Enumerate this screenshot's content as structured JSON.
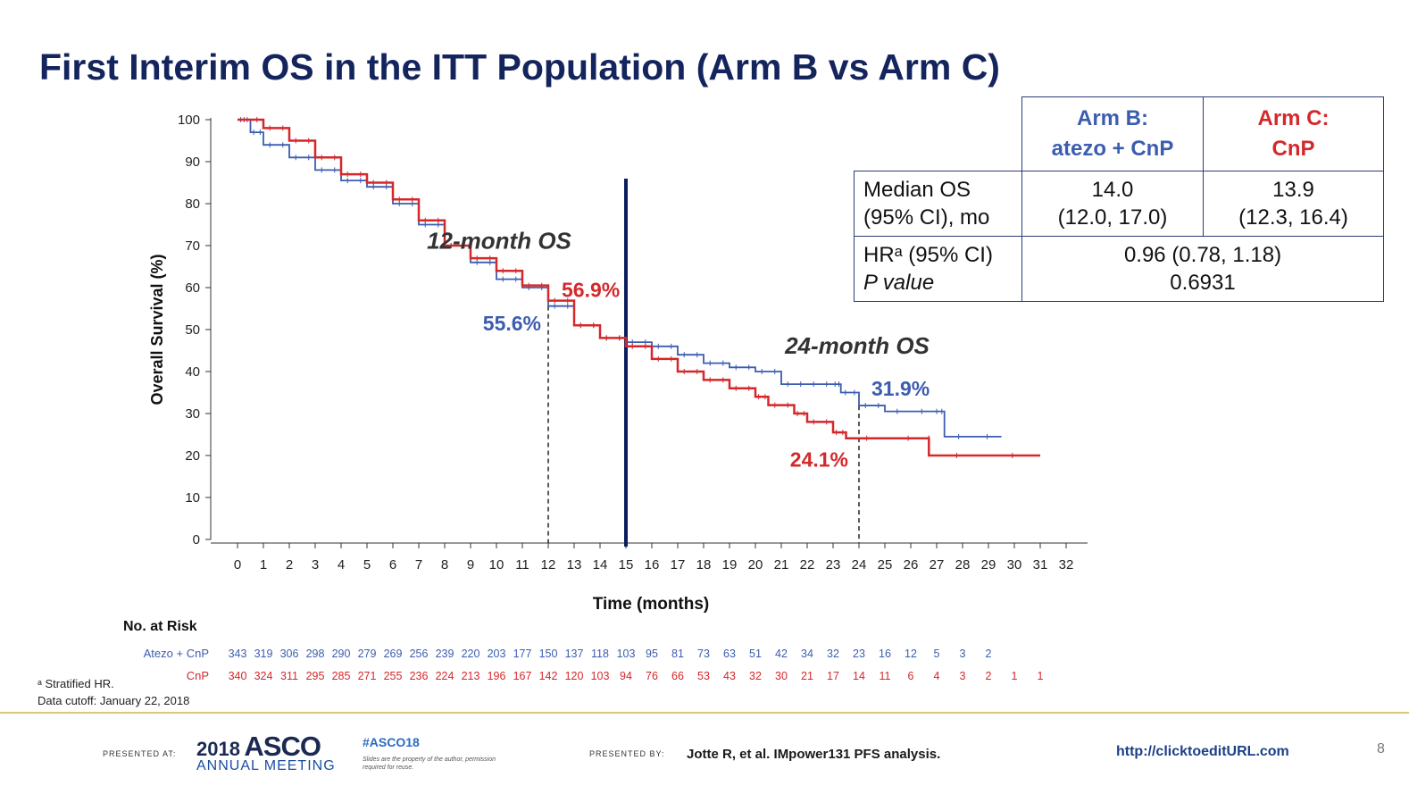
{
  "title": "First Interim OS in the ITT Population (Arm B vs Arm C)",
  "colors": {
    "title": "#14245c",
    "arm_b": "#3b5db0",
    "arm_c": "#d4282b",
    "landmark_line": "#0c1d5e",
    "footer_rule": "#d9c77a"
  },
  "chart_data": {
    "type": "line",
    "subtype": "kaplan-meier",
    "xlabel": "Time (months)",
    "ylabel": "Overall Survival (%)",
    "xlim": [
      0,
      32
    ],
    "ylim": [
      0,
      100
    ],
    "x_ticks": [
      0,
      1,
      2,
      3,
      4,
      5,
      6,
      7,
      8,
      9,
      10,
      11,
      12,
      13,
      14,
      15,
      16,
      17,
      18,
      19,
      20,
      21,
      22,
      23,
      24,
      25,
      26,
      27,
      28,
      29,
      30,
      31,
      32
    ],
    "y_ticks": [
      0,
      10,
      20,
      30,
      40,
      50,
      60,
      70,
      80,
      90,
      100
    ],
    "landmark_lines": [
      12,
      24
    ],
    "highlight_line": 15,
    "series": [
      {
        "name": "Arm B: atezo + CnP",
        "color": "#3b5db0",
        "points": [
          [
            0,
            100
          ],
          [
            0.5,
            97
          ],
          [
            1,
            94
          ],
          [
            2,
            91
          ],
          [
            3,
            88
          ],
          [
            4,
            85.5
          ],
          [
            5,
            84
          ],
          [
            6,
            80
          ],
          [
            7,
            75
          ],
          [
            8,
            70
          ],
          [
            9,
            66
          ],
          [
            10,
            62
          ],
          [
            11,
            60
          ],
          [
            12,
            55.6
          ],
          [
            13,
            51
          ],
          [
            14,
            48
          ],
          [
            15,
            47
          ],
          [
            16,
            46
          ],
          [
            17,
            44
          ],
          [
            18,
            42
          ],
          [
            19,
            41
          ],
          [
            20,
            40
          ],
          [
            21,
            37
          ],
          [
            22,
            37
          ],
          [
            23,
            37
          ],
          [
            23.3,
            35
          ],
          [
            24,
            31.9
          ],
          [
            25,
            30.5
          ],
          [
            26.9,
            30.5
          ],
          [
            27.3,
            24.5
          ],
          [
            29.5,
            24.5
          ]
        ]
      },
      {
        "name": "Arm C: CnP",
        "color": "#d4282b",
        "points": [
          [
            0,
            100
          ],
          [
            1,
            98
          ],
          [
            2,
            95
          ],
          [
            3,
            91
          ],
          [
            4,
            87
          ],
          [
            5,
            85
          ],
          [
            6,
            81
          ],
          [
            7,
            76
          ],
          [
            8,
            70
          ],
          [
            9,
            67
          ],
          [
            10,
            64
          ],
          [
            11,
            60.5
          ],
          [
            12,
            56.9
          ],
          [
            13,
            51
          ],
          [
            14,
            48
          ],
          [
            15,
            46
          ],
          [
            16,
            43
          ],
          [
            17,
            40
          ],
          [
            18,
            38
          ],
          [
            19,
            36
          ],
          [
            20,
            34
          ],
          [
            20.5,
            32
          ],
          [
            21.5,
            30
          ],
          [
            22,
            28
          ],
          [
            23,
            25.5
          ],
          [
            23.5,
            24.1
          ],
          [
            26.7,
            24.1
          ],
          [
            26.7,
            20
          ],
          [
            31,
            20
          ]
        ]
      }
    ],
    "annotations": [
      {
        "text": "12-month OS",
        "x": 12,
        "y": 71
      },
      {
        "text": "56.9%",
        "x": 12,
        "y": 59.5,
        "color": "#d4282b"
      },
      {
        "text": "55.6%",
        "x": 12,
        "y": 51.5,
        "color": "#3b5db0"
      },
      {
        "text": "24-month OS",
        "x": 24,
        "y": 46
      },
      {
        "text": "31.9%",
        "x": 24,
        "y": 36,
        "color": "#3b5db0"
      },
      {
        "text": "24.1%",
        "x": 24,
        "y": 19,
        "color": "#d4282b"
      }
    ],
    "at_risk": {
      "title": "No. at Risk",
      "rows": [
        {
          "label": "Atezo + CnP",
          "color": "#3b5db0",
          "values": [
            "343",
            "319",
            "306",
            "298",
            "290",
            "279",
            "269",
            "256",
            "239",
            "220",
            "203",
            "177",
            "150",
            "137",
            "118",
            "103",
            "95",
            "81",
            "73",
            "63",
            "51",
            "42",
            "34",
            "32",
            "23",
            "16",
            "12",
            "5",
            "3",
            "2"
          ]
        },
        {
          "label": "CnP",
          "color": "#d4282b",
          "values": [
            "340",
            "324",
            "311",
            "295",
            "285",
            "271",
            "255",
            "236",
            "224",
            "213",
            "196",
            "167",
            "142",
            "120",
            "103",
            "94",
            "76",
            "66",
            "53",
            "43",
            "32",
            "30",
            "21",
            "17",
            "14",
            "11",
            "6",
            "4",
            "3",
            "2",
            "1",
            "1"
          ]
        }
      ]
    }
  },
  "table": {
    "header_b_line1": "Arm B:",
    "header_b_line2": "atezo + CnP",
    "header_c_line1": "Arm C:",
    "header_c_line2": "CnP",
    "median_label_line1": "Median OS",
    "median_label_line2": "(95% CI), mo",
    "median_b_line1": "14.0",
    "median_b_line2": "(12.0, 17.0)",
    "median_c_line1": "13.9",
    "median_c_line2": "(12.3, 16.4)",
    "hr_label_line1": "HRᵃ (95% CI)",
    "hr_label_line2": "P value",
    "hr_value": "0.96 (0.78, 1.18)",
    "p_value": "0.6931"
  },
  "footnotes": {
    "stratified": "ᵃ Stratified HR.",
    "cutoff": "Data cutoff: January 22, 2018"
  },
  "footer": {
    "presented_at": "PRESENTED AT:",
    "asco_year": "2018",
    "asco_brand": "ASCO",
    "asco_meeting": "ANNUAL MEETING",
    "hashtag": "#ASCO18",
    "disclaimer": "Slides are the property of the author, permission required for reuse.",
    "presented_by": "PRESENTED BY:",
    "citation": "Jotte R, et al. IMpower131 PFS analysis.",
    "url": "http://clicktoeditURL.com",
    "page_number": "8"
  }
}
